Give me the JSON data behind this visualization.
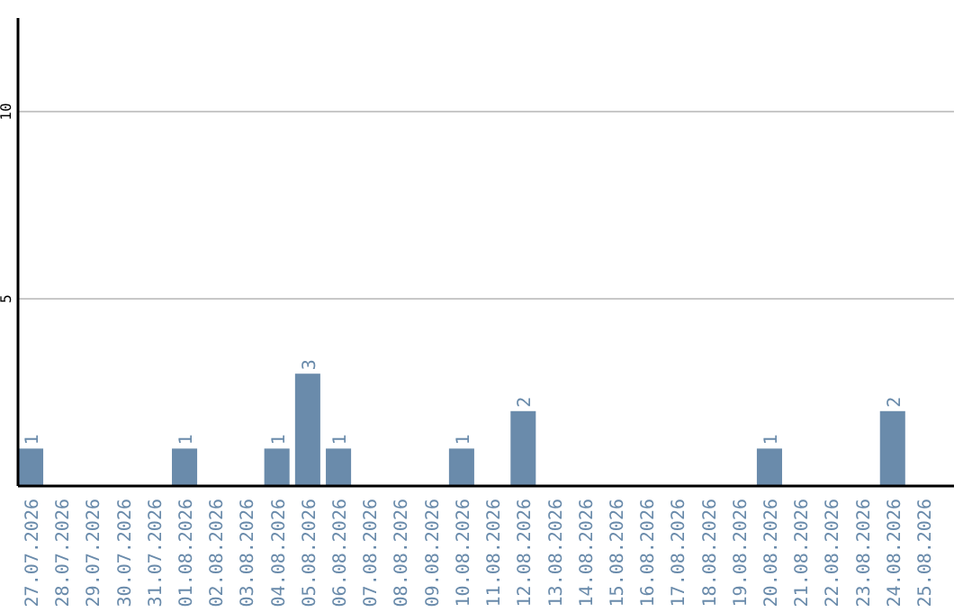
{
  "chart_data": {
    "type": "bar",
    "categories": [
      "27.07.2026",
      "28.07.2026",
      "29.07.2026",
      "30.07.2026",
      "31.07.2026",
      "01.08.2026",
      "02.08.2026",
      "03.08.2026",
      "04.08.2026",
      "05.08.2026",
      "06.08.2026",
      "07.08.2026",
      "08.08.2026",
      "09.08.2026",
      "10.08.2026",
      "11.08.2026",
      "12.08.2026",
      "13.08.2026",
      "14.08.2026",
      "15.08.2026",
      "16.08.2026",
      "17.08.2026",
      "18.08.2026",
      "19.08.2026",
      "20.08.2026",
      "21.08.2026",
      "22.08.2026",
      "23.08.2026",
      "24.08.2026",
      "25.08.2026"
    ],
    "values": [
      1,
      0,
      0,
      0,
      0,
      1,
      0,
      0,
      1,
      3,
      1,
      0,
      0,
      0,
      1,
      0,
      2,
      0,
      0,
      0,
      0,
      0,
      0,
      0,
      1,
      0,
      0,
      0,
      2,
      0
    ],
    "value_labels": [
      "1",
      null,
      null,
      null,
      null,
      "1",
      null,
      null,
      "1",
      "3",
      "1",
      null,
      null,
      null,
      "1",
      null,
      "2",
      null,
      null,
      null,
      null,
      null,
      null,
      null,
      "1",
      null,
      null,
      null,
      "2",
      null
    ],
    "color": "#6a8bab",
    "ylim": [
      0,
      12.5
    ],
    "yticks": [
      5,
      10
    ],
    "grid": "y"
  }
}
